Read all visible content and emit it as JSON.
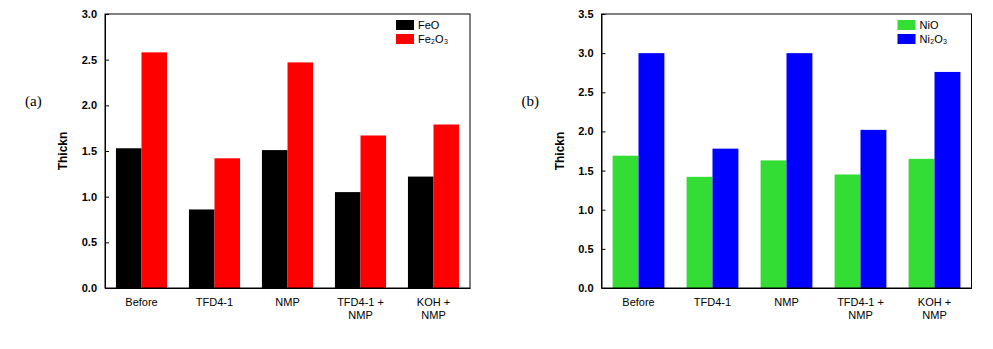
{
  "chart_data": [
    {
      "type": "bar",
      "title": "(a)",
      "y_label": "Thickn",
      "categories": [
        "Before",
        "TFD4-1",
        "NMP",
        "TFD4-1 + NMP",
        "KOH + NMP"
      ],
      "series": [
        {
          "name": "FeO",
          "color": "#000000",
          "values": [
            1.53,
            0.86,
            1.51,
            1.05,
            1.22
          ]
        },
        {
          "name": "Fe₂O₃",
          "color": "#ff0000",
          "values": [
            2.58,
            1.42,
            2.47,
            1.67,
            1.79
          ]
        }
      ],
      "ylim": [
        0,
        3.0
      ],
      "yticks": [
        {
          "value": 0,
          "label": "0.0"
        },
        {
          "value": 0.5,
          "label": "0.5"
        },
        {
          "value": 1.0,
          "label": "1.0"
        },
        {
          "value": 1.5,
          "label": "1.5"
        },
        {
          "value": 2.0,
          "label": "2.0"
        },
        {
          "value": 2.5,
          "label": "2.5"
        },
        {
          "value": 3.0,
          "label": "3.0"
        }
      ],
      "legend": "upper-right"
    },
    {
      "type": "bar",
      "title": "(b)",
      "y_label": "Thickn",
      "categories": [
        "Before",
        "TFD4-1",
        "NMP",
        "TFD4-1 + NMP",
        "KOH + NMP"
      ],
      "series": [
        {
          "name": "NiO",
          "color": "#33dd33",
          "values": [
            1.69,
            1.42,
            1.63,
            1.45,
            1.65
          ]
        },
        {
          "name": "Ni₂O₃",
          "color": "#0000ff",
          "values": [
            3.0,
            1.78,
            3.0,
            2.02,
            2.76
          ]
        }
      ],
      "ylim": [
        0,
        3.5
      ],
      "yticks": [
        {
          "value": 0,
          "label": "0.0"
        },
        {
          "value": 0.5,
          "label": "0.5"
        },
        {
          "value": 1.0,
          "label": "1.0"
        },
        {
          "value": 1.5,
          "label": "1.5"
        },
        {
          "value": 2.0,
          "label": "2.0"
        },
        {
          "value": 2.5,
          "label": "2.5"
        },
        {
          "value": 3.0,
          "label": "3.0"
        },
        {
          "value": 3.5,
          "label": "3.5"
        }
      ],
      "legend": "upper-right"
    }
  ]
}
